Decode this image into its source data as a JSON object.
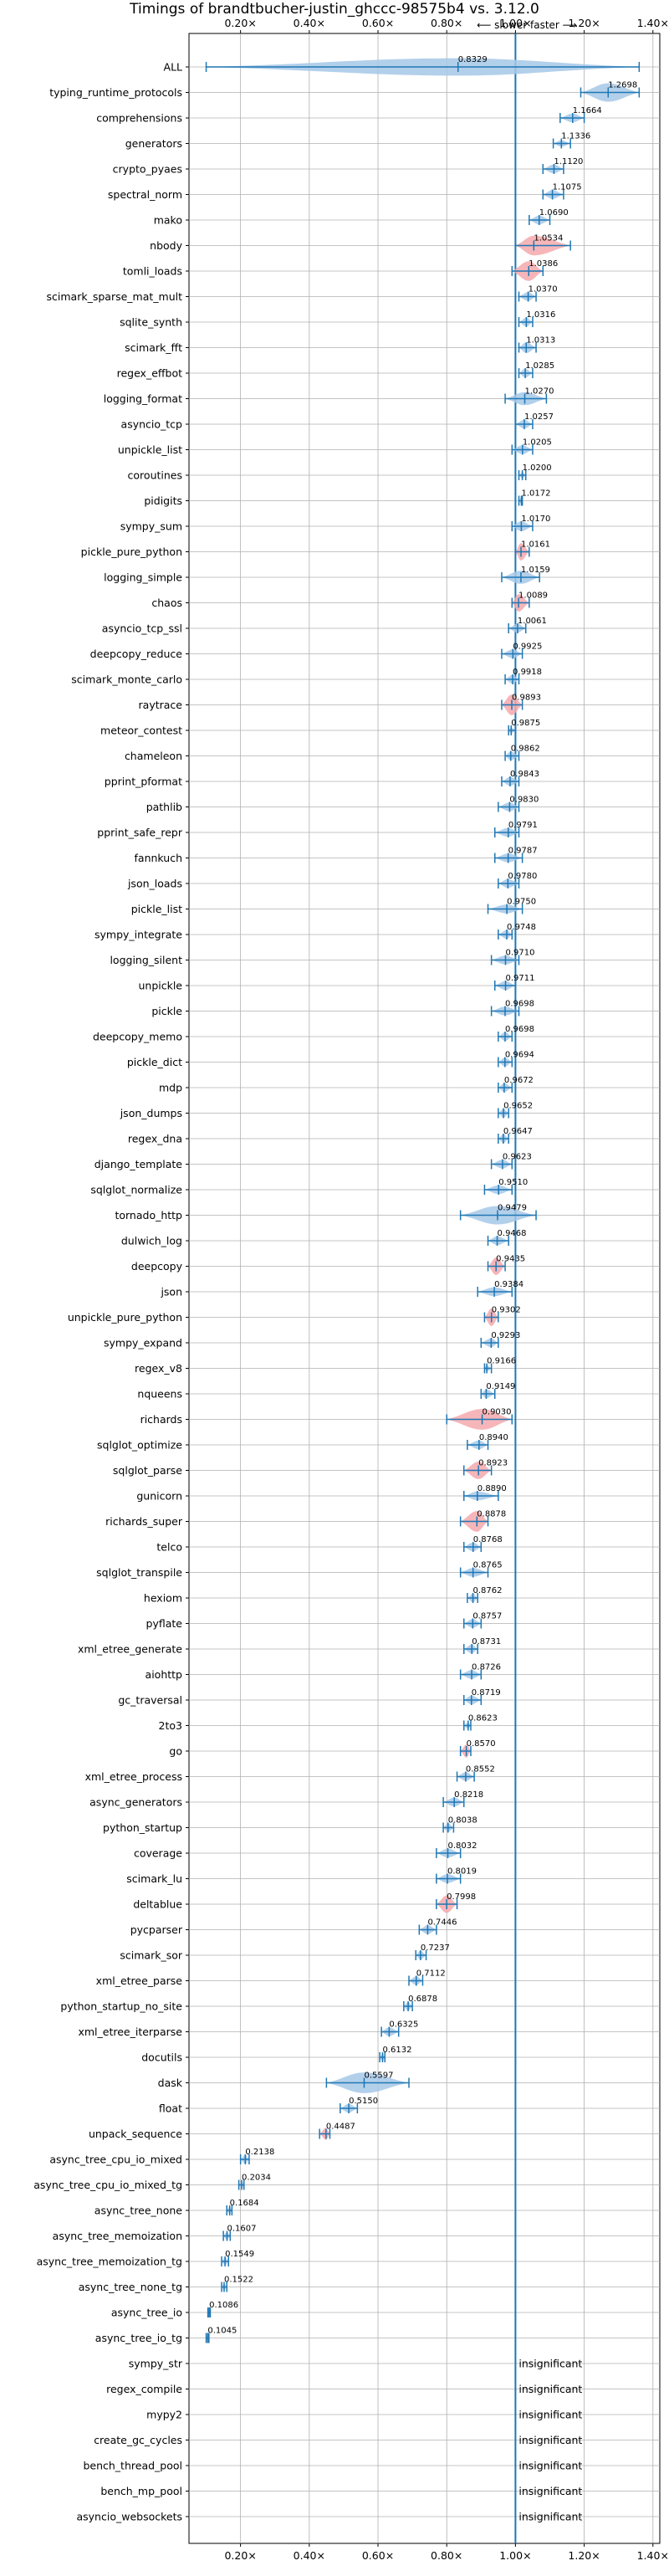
{
  "colors": {
    "violin_normal": "#a6c8e8",
    "violin_highlight": "#f4a9ad",
    "line": "#1f77b4",
    "grid": "#b0b0b0",
    "reference": "#1f77b4"
  },
  "chart_data": {
    "type": "violin",
    "title": "Timings of brandtbucher-justin_ghccc-98575b4 vs. 3.12.0",
    "subtitle": "⟵ slower   faster ⟶",
    "xlim": [
      0.05,
      1.42
    ],
    "xticks": [
      0.2,
      0.4,
      0.6,
      0.8,
      1.0,
      1.2,
      1.4
    ],
    "xtick_labels": [
      "0.20×",
      "0.40×",
      "0.60×",
      "0.80×",
      "1.00×",
      "1.20×",
      "1.40×"
    ],
    "reference_line": 1.0,
    "grid": true,
    "insignificant_text": "insignificant",
    "benchmarks": [
      {
        "name": "ALL",
        "value": 0.8329,
        "label": "0.8329",
        "min": 0.1,
        "max": 1.36,
        "width": 0.8,
        "hl": false
      },
      {
        "name": "typing_runtime_protocols",
        "value": 1.2698,
        "label": "1.2698",
        "min": 1.19,
        "max": 1.36,
        "width": 0.85,
        "hl": false
      },
      {
        "name": "comprehensions",
        "value": 1.1664,
        "label": "1.1664",
        "min": 1.13,
        "max": 1.2,
        "width": 0.4,
        "hl": false
      },
      {
        "name": "generators",
        "value": 1.1336,
        "label": "1.1336",
        "min": 1.11,
        "max": 1.16,
        "width": 0.3,
        "hl": false
      },
      {
        "name": "crypto_pyaes",
        "value": 1.112,
        "label": "1.1120",
        "min": 1.08,
        "max": 1.14,
        "width": 0.4,
        "hl": false
      },
      {
        "name": "spectral_norm",
        "value": 1.1075,
        "label": "1.1075",
        "min": 1.08,
        "max": 1.14,
        "width": 0.4,
        "hl": false
      },
      {
        "name": "mako",
        "value": 1.069,
        "label": "1.0690",
        "min": 1.04,
        "max": 1.1,
        "width": 0.4,
        "hl": false
      },
      {
        "name": "nbody",
        "value": 1.0534,
        "label": "1.0534",
        "min": 1.0,
        "max": 1.16,
        "width": 0.9,
        "hl": true
      },
      {
        "name": "tomli_loads",
        "value": 1.0386,
        "label": "1.0386",
        "min": 0.99,
        "max": 1.08,
        "width": 0.9,
        "hl": true
      },
      {
        "name": "scimark_sparse_mat_mult",
        "value": 1.037,
        "label": "1.0370",
        "min": 1.01,
        "max": 1.06,
        "width": 0.4,
        "hl": false
      },
      {
        "name": "sqlite_synth",
        "value": 1.0316,
        "label": "1.0316",
        "min": 1.01,
        "max": 1.05,
        "width": 0.4,
        "hl": false
      },
      {
        "name": "scimark_fft",
        "value": 1.0313,
        "label": "1.0313",
        "min": 1.01,
        "max": 1.06,
        "width": 0.5,
        "hl": false
      },
      {
        "name": "regex_effbot",
        "value": 1.0285,
        "label": "1.0285",
        "min": 1.01,
        "max": 1.05,
        "width": 0.4,
        "hl": false
      },
      {
        "name": "logging_format",
        "value": 1.027,
        "label": "1.0270",
        "min": 0.97,
        "max": 1.09,
        "width": 0.6,
        "hl": false
      },
      {
        "name": "asyncio_tcp",
        "value": 1.0257,
        "label": "1.0257",
        "min": 1.0,
        "max": 1.05,
        "width": 0.4,
        "hl": false
      },
      {
        "name": "unpickle_list",
        "value": 1.0205,
        "label": "1.0205",
        "min": 0.99,
        "max": 1.05,
        "width": 0.4,
        "hl": false
      },
      {
        "name": "coroutines",
        "value": 1.02,
        "label": "1.0200",
        "min": 1.01,
        "max": 1.03,
        "width": 0.3,
        "hl": false
      },
      {
        "name": "pidigits",
        "value": 1.0172,
        "label": "1.0172",
        "min": 1.01,
        "max": 1.02,
        "width": 0.3,
        "hl": false
      },
      {
        "name": "sympy_sum",
        "value": 1.017,
        "label": "1.0170",
        "min": 0.99,
        "max": 1.05,
        "width": 0.45,
        "hl": false
      },
      {
        "name": "pickle_pure_python",
        "value": 1.0161,
        "label": "1.0161",
        "min": 1.0,
        "max": 1.04,
        "width": 0.8,
        "hl": true
      },
      {
        "name": "logging_simple",
        "value": 1.0159,
        "label": "1.0159",
        "min": 0.96,
        "max": 1.07,
        "width": 0.6,
        "hl": false
      },
      {
        "name": "chaos",
        "value": 1.0089,
        "label": "1.0089",
        "min": 0.99,
        "max": 1.04,
        "width": 0.8,
        "hl": true
      },
      {
        "name": "asyncio_tcp_ssl",
        "value": 1.0061,
        "label": "1.0061",
        "min": 0.98,
        "max": 1.03,
        "width": 0.4,
        "hl": false
      },
      {
        "name": "deepcopy_reduce",
        "value": 0.9925,
        "label": "0.9925",
        "min": 0.96,
        "max": 1.02,
        "width": 0.4,
        "hl": false
      },
      {
        "name": "scimark_monte_carlo",
        "value": 0.9918,
        "label": "0.9918",
        "min": 0.97,
        "max": 1.01,
        "width": 0.4,
        "hl": false
      },
      {
        "name": "raytrace",
        "value": 0.9893,
        "label": "0.9893",
        "min": 0.96,
        "max": 1.02,
        "width": 0.95,
        "hl": true
      },
      {
        "name": "meteor_contest",
        "value": 0.9875,
        "label": "0.9875",
        "min": 0.98,
        "max": 1.0,
        "width": 0.3,
        "hl": false
      },
      {
        "name": "chameleon",
        "value": 0.9862,
        "label": "0.9862",
        "min": 0.97,
        "max": 1.01,
        "width": 0.4,
        "hl": false
      },
      {
        "name": "pprint_pformat",
        "value": 0.9843,
        "label": "0.9843",
        "min": 0.96,
        "max": 1.01,
        "width": 0.4,
        "hl": false
      },
      {
        "name": "pathlib",
        "value": 0.983,
        "label": "0.9830",
        "min": 0.95,
        "max": 1.01,
        "width": 0.4,
        "hl": false
      },
      {
        "name": "pprint_safe_repr",
        "value": 0.9791,
        "label": "0.9791",
        "min": 0.94,
        "max": 1.01,
        "width": 0.4,
        "hl": false
      },
      {
        "name": "fannkuch",
        "value": 0.9787,
        "label": "0.9787",
        "min": 0.94,
        "max": 1.02,
        "width": 0.4,
        "hl": false
      },
      {
        "name": "json_loads",
        "value": 0.978,
        "label": "0.9780",
        "min": 0.95,
        "max": 1.01,
        "width": 0.4,
        "hl": false
      },
      {
        "name": "pickle_list",
        "value": 0.975,
        "label": "0.9750",
        "min": 0.92,
        "max": 1.02,
        "width": 0.4,
        "hl": false
      },
      {
        "name": "sympy_integrate",
        "value": 0.9748,
        "label": "0.9748",
        "min": 0.95,
        "max": 0.99,
        "width": 0.4,
        "hl": false
      },
      {
        "name": "logging_silent",
        "value": 0.971,
        "label": "0.9710",
        "min": 0.93,
        "max": 1.01,
        "width": 0.4,
        "hl": false
      },
      {
        "name": "unpickle",
        "value": 0.9711,
        "label": "0.9711",
        "min": 0.94,
        "max": 1.0,
        "width": 0.4,
        "hl": false
      },
      {
        "name": "pickle",
        "value": 0.9698,
        "label": "0.9698",
        "min": 0.93,
        "max": 1.01,
        "width": 0.4,
        "hl": false
      },
      {
        "name": "deepcopy_memo",
        "value": 0.9698,
        "label": "0.9698",
        "min": 0.95,
        "max": 0.99,
        "width": 0.4,
        "hl": false
      },
      {
        "name": "pickle_dict",
        "value": 0.9694,
        "label": "0.9694",
        "min": 0.95,
        "max": 0.99,
        "width": 0.4,
        "hl": false
      },
      {
        "name": "mdp",
        "value": 0.9672,
        "label": "0.9672",
        "min": 0.95,
        "max": 0.99,
        "width": 0.4,
        "hl": false
      },
      {
        "name": "json_dumps",
        "value": 0.9652,
        "label": "0.9652",
        "min": 0.95,
        "max": 0.98,
        "width": 0.4,
        "hl": false
      },
      {
        "name": "regex_dna",
        "value": 0.9647,
        "label": "0.9647",
        "min": 0.95,
        "max": 0.98,
        "width": 0.4,
        "hl": false
      },
      {
        "name": "django_template",
        "value": 0.9623,
        "label": "0.9623",
        "min": 0.93,
        "max": 0.99,
        "width": 0.4,
        "hl": false
      },
      {
        "name": "sqlglot_normalize",
        "value": 0.951,
        "label": "0.9510",
        "min": 0.91,
        "max": 0.99,
        "width": 0.4,
        "hl": false
      },
      {
        "name": "tornado_http",
        "value": 0.9479,
        "label": "0.9479",
        "min": 0.84,
        "max": 1.06,
        "width": 0.85,
        "hl": false
      },
      {
        "name": "dulwich_log",
        "value": 0.9468,
        "label": "0.9468",
        "min": 0.92,
        "max": 0.98,
        "width": 0.4,
        "hl": false
      },
      {
        "name": "deepcopy",
        "value": 0.9435,
        "label": "0.9435",
        "min": 0.92,
        "max": 0.97,
        "width": 0.8,
        "hl": true
      },
      {
        "name": "json",
        "value": 0.9384,
        "label": "0.9384",
        "min": 0.89,
        "max": 0.99,
        "width": 0.4,
        "hl": false
      },
      {
        "name": "unpickle_pure_python",
        "value": 0.9302,
        "label": "0.9302",
        "min": 0.91,
        "max": 0.95,
        "width": 0.8,
        "hl": true
      },
      {
        "name": "sympy_expand",
        "value": 0.9293,
        "label": "0.9293",
        "min": 0.9,
        "max": 0.95,
        "width": 0.4,
        "hl": false
      },
      {
        "name": "regex_v8",
        "value": 0.9166,
        "label": "0.9166",
        "min": 0.91,
        "max": 0.93,
        "width": 0.3,
        "hl": false
      },
      {
        "name": "nqueens",
        "value": 0.9149,
        "label": "0.9149",
        "min": 0.9,
        "max": 0.94,
        "width": 0.4,
        "hl": false
      },
      {
        "name": "richards",
        "value": 0.903,
        "label": "0.9030",
        "min": 0.8,
        "max": 0.99,
        "width": 0.95,
        "hl": true
      },
      {
        "name": "sqlglot_optimize",
        "value": 0.894,
        "label": "0.8940",
        "min": 0.86,
        "max": 0.92,
        "width": 0.4,
        "hl": false
      },
      {
        "name": "sqlglot_parse",
        "value": 0.8923,
        "label": "0.8923",
        "min": 0.85,
        "max": 0.93,
        "width": 0.8,
        "hl": true
      },
      {
        "name": "gunicorn",
        "value": 0.889,
        "label": "0.8890",
        "min": 0.85,
        "max": 0.95,
        "width": 0.4,
        "hl": false
      },
      {
        "name": "richards_super",
        "value": 0.8878,
        "label": "0.8878",
        "min": 0.84,
        "max": 0.92,
        "width": 0.95,
        "hl": true
      },
      {
        "name": "telco",
        "value": 0.8768,
        "label": "0.8768",
        "min": 0.85,
        "max": 0.9,
        "width": 0.4,
        "hl": false
      },
      {
        "name": "sqlglot_transpile",
        "value": 0.8765,
        "label": "0.8765",
        "min": 0.84,
        "max": 0.92,
        "width": 0.4,
        "hl": false
      },
      {
        "name": "hexiom",
        "value": 0.8762,
        "label": "0.8762",
        "min": 0.86,
        "max": 0.89,
        "width": 0.4,
        "hl": false
      },
      {
        "name": "pyflate",
        "value": 0.8757,
        "label": "0.8757",
        "min": 0.85,
        "max": 0.9,
        "width": 0.4,
        "hl": false
      },
      {
        "name": "xml_etree_generate",
        "value": 0.8731,
        "label": "0.8731",
        "min": 0.85,
        "max": 0.89,
        "width": 0.4,
        "hl": false
      },
      {
        "name": "aiohttp",
        "value": 0.8726,
        "label": "0.8726",
        "min": 0.84,
        "max": 0.9,
        "width": 0.4,
        "hl": false
      },
      {
        "name": "gc_traversal",
        "value": 0.8719,
        "label": "0.8719",
        "min": 0.85,
        "max": 0.9,
        "width": 0.4,
        "hl": false
      },
      {
        "name": "2to3",
        "value": 0.8623,
        "label": "0.8623",
        "min": 0.85,
        "max": 0.87,
        "width": 0.3,
        "hl": false
      },
      {
        "name": "go",
        "value": 0.857,
        "label": "0.8570",
        "min": 0.84,
        "max": 0.87,
        "width": 0.6,
        "hl": true
      },
      {
        "name": "xml_etree_process",
        "value": 0.8552,
        "label": "0.8552",
        "min": 0.83,
        "max": 0.88,
        "width": 0.4,
        "hl": false
      },
      {
        "name": "async_generators",
        "value": 0.8218,
        "label": "0.8218",
        "min": 0.79,
        "max": 0.85,
        "width": 0.4,
        "hl": false
      },
      {
        "name": "python_startup",
        "value": 0.8038,
        "label": "0.8038",
        "min": 0.79,
        "max": 0.82,
        "width": 0.4,
        "hl": false
      },
      {
        "name": "coverage",
        "value": 0.8032,
        "label": "0.8032",
        "min": 0.77,
        "max": 0.84,
        "width": 0.4,
        "hl": false
      },
      {
        "name": "scimark_lu",
        "value": 0.8019,
        "label": "0.8019",
        "min": 0.77,
        "max": 0.84,
        "width": 0.4,
        "hl": false
      },
      {
        "name": "deltablue",
        "value": 0.7998,
        "label": "0.7998",
        "min": 0.77,
        "max": 0.83,
        "width": 0.8,
        "hl": true
      },
      {
        "name": "pycparser",
        "value": 0.7446,
        "label": "0.7446",
        "min": 0.72,
        "max": 0.77,
        "width": 0.4,
        "hl": false
      },
      {
        "name": "scimark_sor",
        "value": 0.7237,
        "label": "0.7237",
        "min": 0.71,
        "max": 0.74,
        "width": 0.4,
        "hl": false
      },
      {
        "name": "xml_etree_parse",
        "value": 0.7112,
        "label": "0.7112",
        "min": 0.69,
        "max": 0.73,
        "width": 0.4,
        "hl": false
      },
      {
        "name": "python_startup_no_site",
        "value": 0.6878,
        "label": "0.6878",
        "min": 0.675,
        "max": 0.7,
        "width": 0.4,
        "hl": false
      },
      {
        "name": "xml_etree_iterparse",
        "value": 0.6325,
        "label": "0.6325",
        "min": 0.61,
        "max": 0.66,
        "width": 0.4,
        "hl": false
      },
      {
        "name": "docutils",
        "value": 0.6132,
        "label": "0.6132",
        "min": 0.605,
        "max": 0.62,
        "width": 0.35,
        "hl": false
      },
      {
        "name": "dask",
        "value": 0.5597,
        "label": "0.5597",
        "min": 0.45,
        "max": 0.69,
        "width": 0.95,
        "hl": false
      },
      {
        "name": "float",
        "value": 0.515,
        "label": "0.5150",
        "min": 0.49,
        "max": 0.54,
        "width": 0.4,
        "hl": false
      },
      {
        "name": "unpack_sequence",
        "value": 0.4487,
        "label": "0.4487",
        "min": 0.43,
        "max": 0.46,
        "width": 0.55,
        "hl": true
      },
      {
        "name": "async_tree_cpu_io_mixed",
        "value": 0.2138,
        "label": "0.2138",
        "min": 0.2,
        "max": 0.225,
        "width": 0.4,
        "hl": false
      },
      {
        "name": "async_tree_cpu_io_mixed_tg",
        "value": 0.2034,
        "label": "0.2034",
        "min": 0.195,
        "max": 0.21,
        "width": 0.35,
        "hl": false
      },
      {
        "name": "async_tree_none",
        "value": 0.1684,
        "label": "0.1684",
        "min": 0.16,
        "max": 0.175,
        "width": 0.35,
        "hl": false
      },
      {
        "name": "async_tree_memoization",
        "value": 0.1607,
        "label": "0.1607",
        "min": 0.15,
        "max": 0.17,
        "width": 0.35,
        "hl": false
      },
      {
        "name": "async_tree_memoization_tg",
        "value": 0.1549,
        "label": "0.1549",
        "min": 0.145,
        "max": 0.165,
        "width": 0.35,
        "hl": false
      },
      {
        "name": "async_tree_none_tg",
        "value": 0.1522,
        "label": "0.1522",
        "min": 0.145,
        "max": 0.16,
        "width": 0.3,
        "hl": false
      },
      {
        "name": "async_tree_io",
        "value": 0.1086,
        "label": "0.1086",
        "min": 0.105,
        "max": 0.112,
        "width": 0.25,
        "hl": false
      },
      {
        "name": "async_tree_io_tg",
        "value": 0.1045,
        "label": "0.1045",
        "min": 0.1,
        "max": 0.108,
        "width": 0.25,
        "hl": false
      },
      {
        "name": "sympy_str",
        "value": null,
        "label": "",
        "insignificant": true
      },
      {
        "name": "regex_compile",
        "value": null,
        "label": "",
        "insignificant": true
      },
      {
        "name": "mypy2",
        "value": null,
        "label": "",
        "insignificant": true
      },
      {
        "name": "create_gc_cycles",
        "value": null,
        "label": "",
        "insignificant": true
      },
      {
        "name": "bench_thread_pool",
        "value": null,
        "label": "",
        "insignificant": true
      },
      {
        "name": "bench_mp_pool",
        "value": null,
        "label": "",
        "insignificant": true
      },
      {
        "name": "asyncio_websockets",
        "value": null,
        "label": "",
        "insignificant": true
      }
    ]
  }
}
